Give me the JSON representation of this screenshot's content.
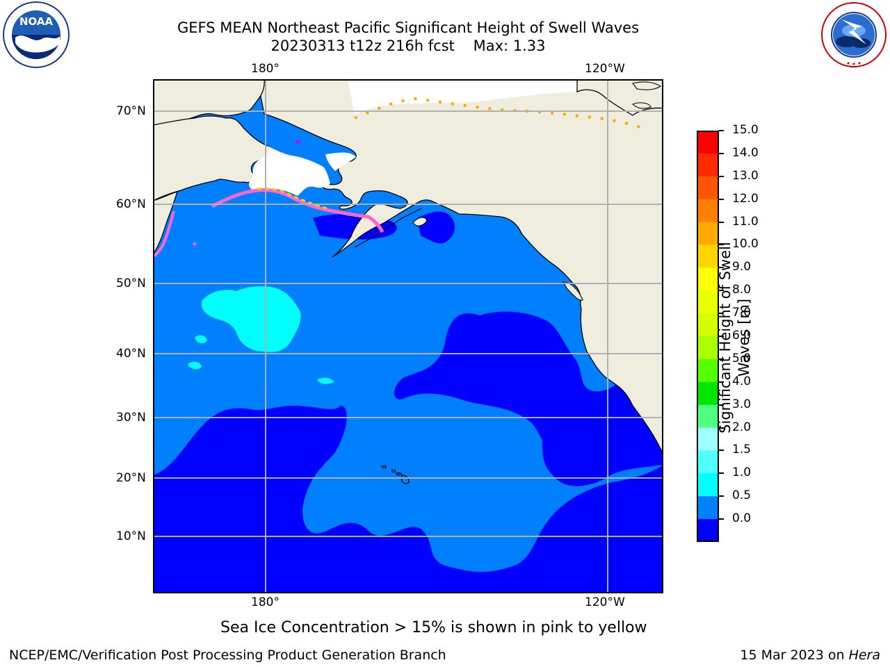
{
  "header": {
    "title_line1": "GEFS MEAN Northeast Pacific Significant Height of Swell Waves",
    "title_line2": "20230313 t12z 216h fcst    Max: 1.33",
    "left_logo": "noaa-logo",
    "right_logo": "national-weather-service-logo",
    "left_logo_text": "NOAA",
    "left_logo_ring_text": "NATIONAL OCEANIC AND ATMOSPHERIC ADMINISTRATION · U.S. DEPARTMENT OF COMMERCE",
    "right_logo_ring_text": "NATIONAL WEATHER SERVICE"
  },
  "map": {
    "top_lon_labels": [
      "180°",
      "120°W"
    ],
    "bottom_lon_labels": [
      "180°",
      "120°W"
    ],
    "lat_labels": [
      "70°N",
      "60°N",
      "50°N",
      "40°N",
      "30°N",
      "20°N",
      "10°N"
    ],
    "colors": {
      "land": "#efedde",
      "ice_free_white": "#ffffff",
      "grid": "#b0b0b0"
    }
  },
  "colorbar": {
    "title": "Significant Height of Swell Waves [m]",
    "tick_labels": [
      "15.0",
      "14.0",
      "13.0",
      "12.0",
      "11.0",
      "10.0",
      "9.0",
      "8.0",
      "7.0",
      "6.0",
      "5.0",
      "4.0",
      "3.0",
      "2.0",
      "1.5",
      "1.0",
      "0.5",
      "0.0"
    ],
    "bin_colors_top_to_bottom": [
      "#ff0000",
      "#ff2a00",
      "#ff5500",
      "#ff8000",
      "#ffaa00",
      "#ffd500",
      "#ffff00",
      "#eaff00",
      "#d5ff00",
      "#aaff00",
      "#55ff00",
      "#00e600",
      "#50ff80",
      "#a0ffff",
      "#50ffff",
      "#00ffff",
      "#0080ff",
      "#0000ff"
    ]
  },
  "note": "Sea Ice Concentration > 15% is shown in pink to yellow",
  "footer": {
    "left": "NCEP/EMC/Verification Post Processing Product Generation Branch",
    "right_date": "15 Mar 2023 on ",
    "right_machine": "Hera"
  }
}
